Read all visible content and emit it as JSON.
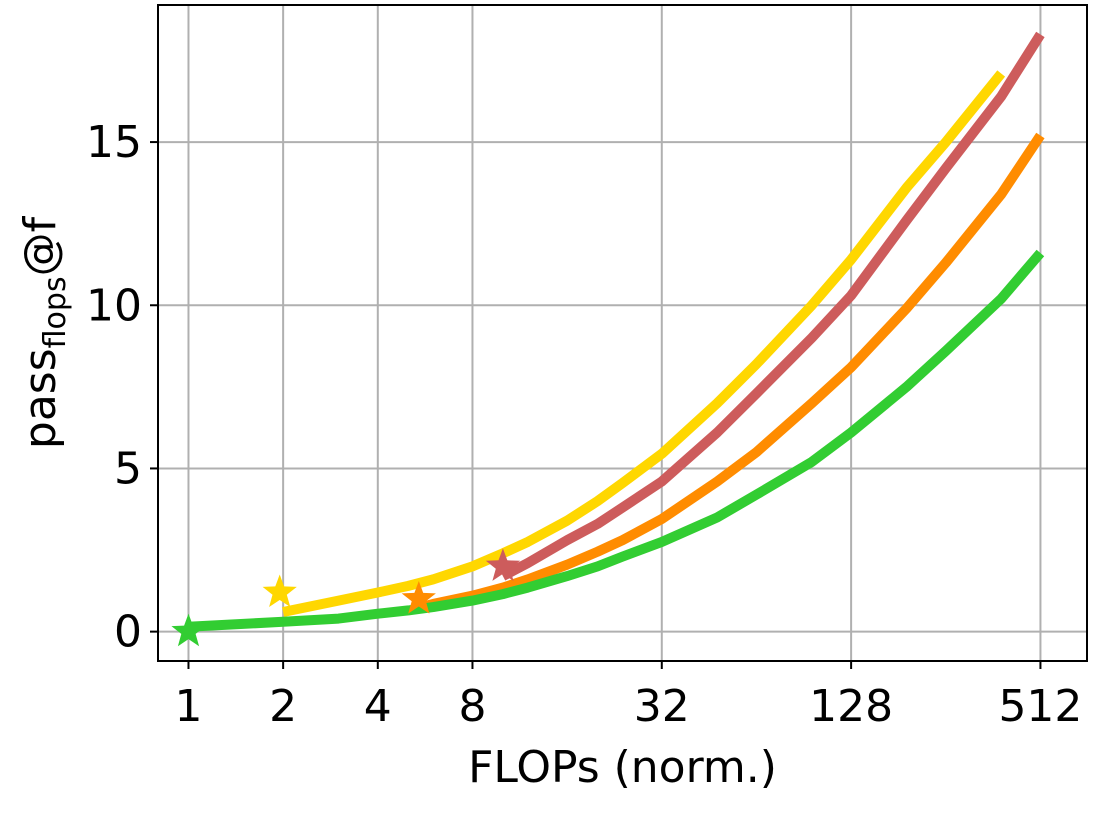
{
  "chart_data": {
    "type": "line",
    "title": "",
    "xlabel": "FLOPs (norm.)",
    "ylabel": {
      "base": "pass",
      "subscript": "flops",
      "suffix": "@f"
    },
    "x_scale": "log2",
    "xlim": [
      0.8,
      720
    ],
    "ylim": [
      -0.9,
      19.2
    ],
    "x_ticks": [
      1,
      2,
      4,
      8,
      32,
      128,
      512
    ],
    "x_tick_labels": [
      "1",
      "2",
      "4",
      "8",
      "32",
      "128",
      "512"
    ],
    "y_ticks": [
      0,
      5,
      10,
      15
    ],
    "y_tick_labels": [
      "0",
      "5",
      "10",
      "15"
    ],
    "grid": true,
    "legend": "none",
    "series": [
      {
        "color": "#FFD700",
        "x": [
          2,
          3,
          4,
          5,
          6,
          8,
          10,
          12,
          16,
          20,
          24,
          32,
          48,
          64,
          96,
          128,
          192,
          256,
          384
        ],
        "y": [
          0.6,
          0.95,
          1.2,
          1.4,
          1.6,
          2.0,
          2.4,
          2.75,
          3.4,
          4.0,
          4.55,
          5.45,
          7.0,
          8.2,
          10.0,
          11.4,
          13.6,
          15.0,
          17.1
        ],
        "star": {
          "x": 1.95,
          "y": 1.2
        }
      },
      {
        "color": "#CD5C5C",
        "x": [
          10,
          12,
          16,
          20,
          24,
          32,
          48,
          64,
          96,
          128,
          192,
          256,
          384,
          512
        ],
        "y": [
          1.7,
          2.1,
          2.8,
          3.3,
          3.8,
          4.6,
          6.1,
          7.3,
          9.0,
          10.3,
          12.6,
          14.2,
          16.4,
          18.3
        ],
        "star": {
          "x": 10,
          "y": 2.0
        }
      },
      {
        "color": "#FF8C00",
        "x": [
          5.5,
          6,
          8,
          10,
          12,
          16,
          20,
          24,
          32,
          48,
          64,
          96,
          128,
          192,
          256,
          384,
          512
        ],
        "y": [
          0.75,
          0.85,
          1.1,
          1.35,
          1.6,
          2.05,
          2.45,
          2.8,
          3.45,
          4.6,
          5.5,
          7.0,
          8.1,
          9.9,
          11.3,
          13.4,
          15.2
        ],
        "star": {
          "x": 5.4,
          "y": 1.0
        }
      },
      {
        "color": "#32CD32",
        "x": [
          1,
          2,
          3,
          4,
          5,
          6,
          8,
          10,
          12,
          16,
          20,
          24,
          32,
          48,
          64,
          96,
          128,
          192,
          256,
          384,
          512
        ],
        "y": [
          0.15,
          0.3,
          0.4,
          0.55,
          0.65,
          0.75,
          0.95,
          1.15,
          1.35,
          1.7,
          2.0,
          2.3,
          2.75,
          3.5,
          4.2,
          5.2,
          6.1,
          7.5,
          8.6,
          10.2,
          11.6
        ],
        "star": {
          "x": 1,
          "y": 0.0
        }
      }
    ]
  }
}
